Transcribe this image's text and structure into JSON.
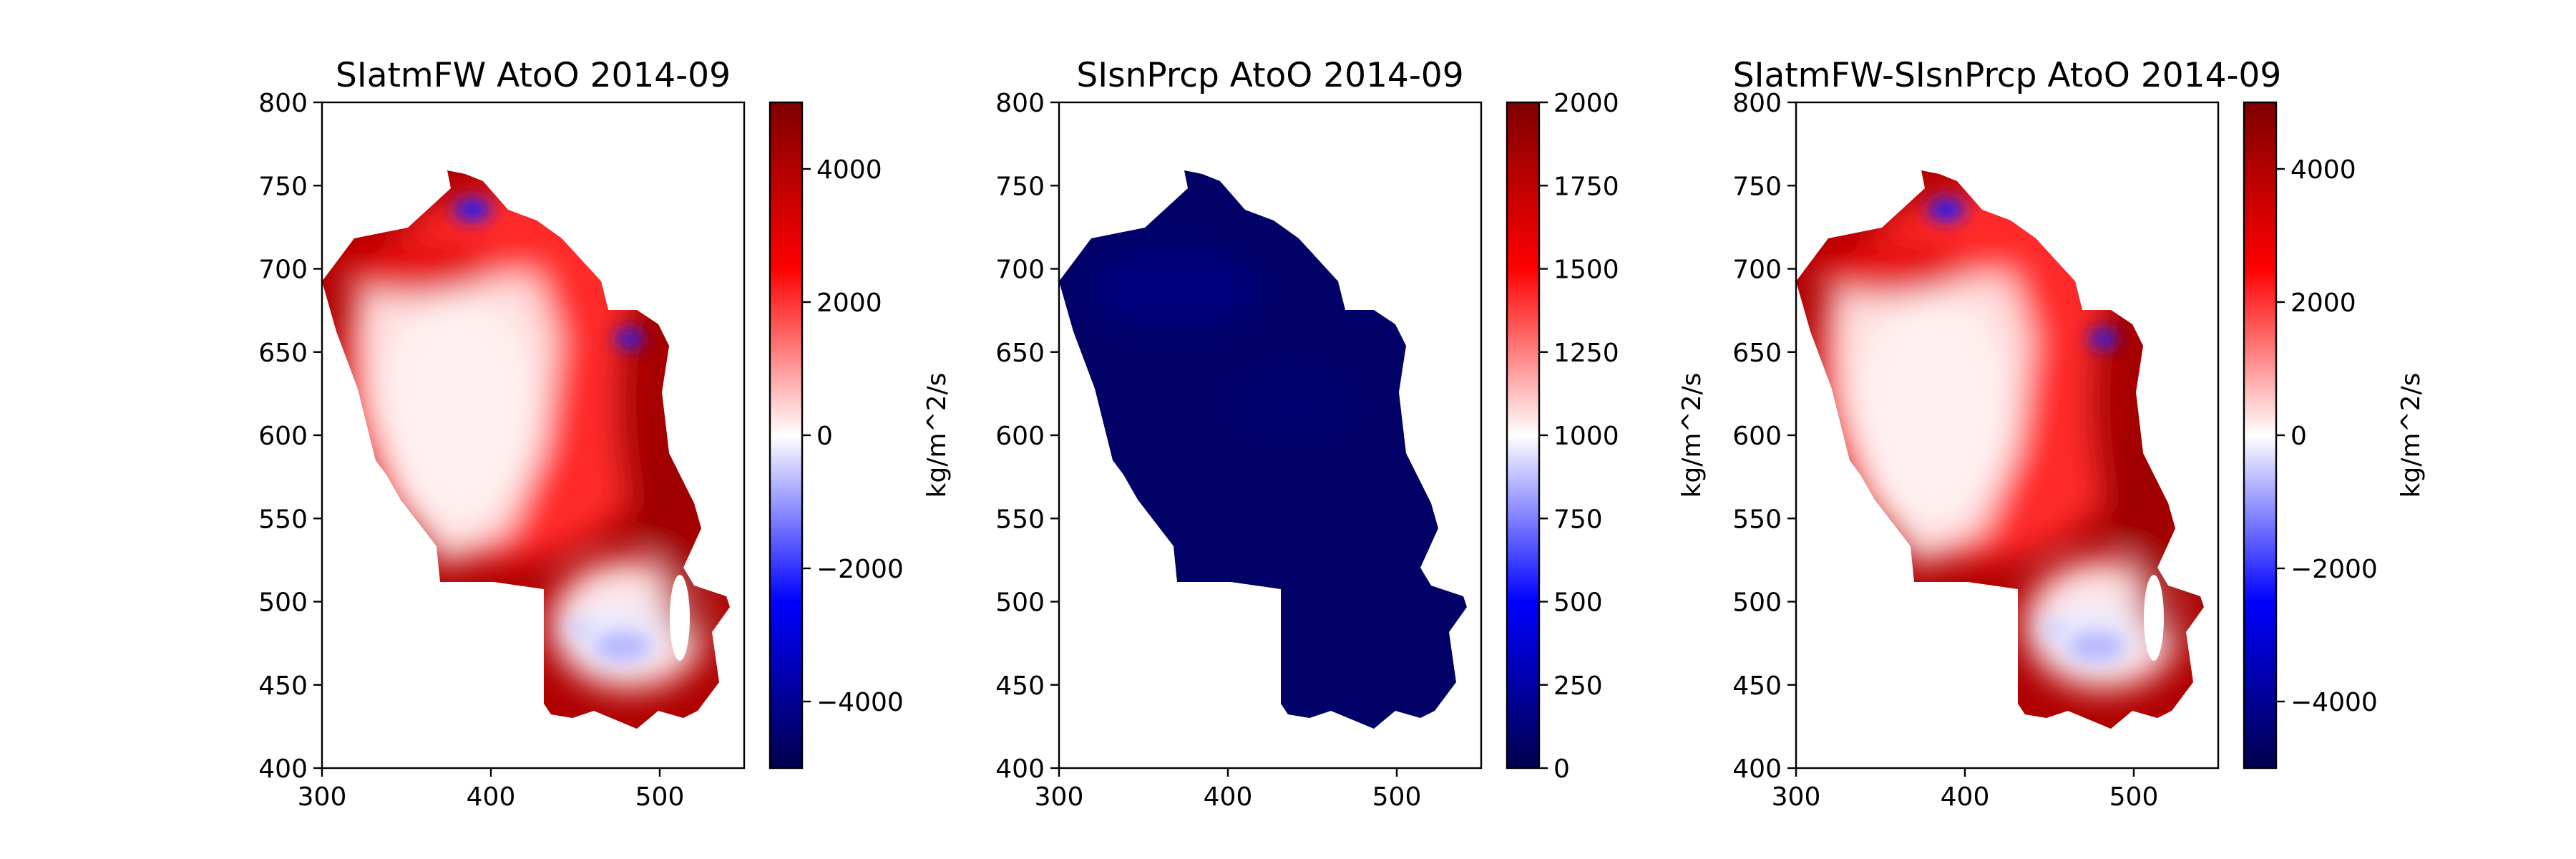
{
  "chart_data": [
    {
      "type": "heatmap",
      "title": "SIatmFW AtoO 2014-09",
      "xlabel": "",
      "ylabel": "",
      "xlim": [
        300,
        550
      ],
      "ylim": [
        400,
        800
      ],
      "xticks": [
        "300",
        "400",
        "500"
      ],
      "yticks": [
        "400",
        "450",
        "500",
        "550",
        "600",
        "650",
        "700",
        "750",
        "800"
      ],
      "colormap": "seismic",
      "colorbar": {
        "label": "kg/m^2/s",
        "range": [
          -5000,
          5000
        ],
        "ticks": [
          "−4000",
          "−2000",
          "0",
          "2000",
          "4000"
        ]
      }
    },
    {
      "type": "heatmap",
      "title": "SIsnPrcp AtoO 2014-09",
      "xlabel": "",
      "ylabel": "",
      "xlim": [
        300,
        550
      ],
      "ylim": [
        400,
        800
      ],
      "xticks": [
        "300",
        "400",
        "500"
      ],
      "yticks": [
        "400",
        "450",
        "500",
        "550",
        "600",
        "650",
        "700",
        "750",
        "800"
      ],
      "colormap": "seismic",
      "colorbar": {
        "label": "kg/m^2/s",
        "range": [
          0,
          2000
        ],
        "ticks": [
          "0",
          "250",
          "500",
          "750",
          "1000",
          "1250",
          "1500",
          "1750",
          "2000"
        ]
      }
    },
    {
      "type": "heatmap",
      "title": "SIatmFW-SIsnPrcp AtoO 2014-09",
      "xlabel": "",
      "ylabel": "",
      "xlim": [
        300,
        550
      ],
      "ylim": [
        400,
        800
      ],
      "xticks": [
        "300",
        "400",
        "500"
      ],
      "yticks": [
        "400",
        "450",
        "500",
        "550",
        "600",
        "650",
        "700",
        "750",
        "800"
      ],
      "colormap": "seismic",
      "colorbar": {
        "label": "kg/m^2/s",
        "range": [
          -5000,
          5000
        ],
        "ticks": [
          "−4000",
          "−2000",
          "0",
          "2000",
          "4000"
        ]
      }
    }
  ],
  "colors": {
    "seismic_low": "#00004c",
    "seismic_blue": "#0000ff",
    "seismic_mid": "#ffffff",
    "seismic_red": "#ff0000",
    "seismic_high": "#7f0000",
    "axis": "#000000"
  }
}
